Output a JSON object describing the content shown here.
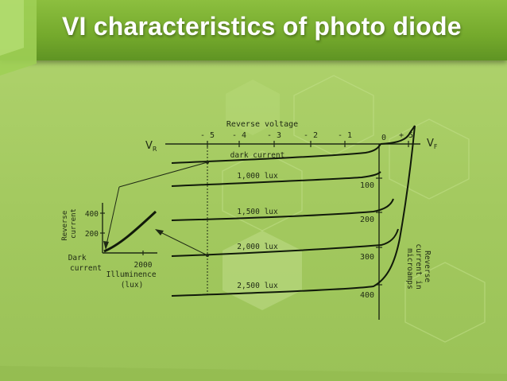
{
  "slide": {
    "title": "VI characteristics of photo diode",
    "colors": {
      "background": "#a6cc63",
      "header": "#74a92c",
      "title": "#ffffff",
      "ink": "#1f2a14"
    }
  },
  "diagram": {
    "top_axis": {
      "title": "Reverse voltage",
      "ticks": [
        "- 5",
        "- 4",
        "- 3",
        "- 2",
        "- 1",
        "0",
        "+ 5"
      ],
      "left_label_main": "V",
      "left_label_sub": "R",
      "right_label_main": "V",
      "right_label_sub": "F"
    },
    "right_axis": {
      "ticks": [
        "100",
        "200",
        "300",
        "400"
      ],
      "title_lines": [
        "Reverse",
        "current in",
        "microamps"
      ]
    },
    "curves": [
      "dark current",
      "1,000 lux",
      "1,500 lux",
      "2,000 lux",
      "2,500 lux"
    ],
    "inset": {
      "y_ticks": [
        "400",
        "200"
      ],
      "y_title_lines": [
        "Reverse",
        "current"
      ],
      "x_tick": "2000",
      "x_title_lines": [
        "Illuminence",
        "(lux)"
      ],
      "origin_label_lines": [
        "Dark",
        "current"
      ]
    }
  }
}
